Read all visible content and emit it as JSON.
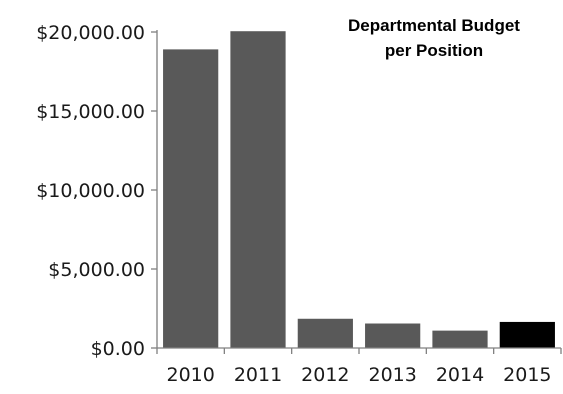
{
  "chart_data": {
    "type": "bar",
    "title_lines": [
      "Departmental Budget",
      "per Position"
    ],
    "categories": [
      "2010",
      "2011",
      "2012",
      "2013",
      "2014",
      "2015"
    ],
    "values": [
      18900,
      20050,
      1850,
      1550,
      1100,
      1650
    ],
    "y_ticks": [
      0,
      5000,
      10000,
      15000,
      20000
    ],
    "y_tick_labels": [
      "$0.00",
      "$5,000.00",
      "$10,000.00",
      "$15,000.00",
      "$20,000.00"
    ],
    "ylim": [
      0,
      20000
    ],
    "xlabel": "",
    "ylabel": "",
    "grid": false,
    "legend": "none",
    "colors": {
      "bar": "#595959",
      "highlight_bar": "#000000",
      "axis": "#808080",
      "text": "#1a1a1a"
    },
    "highlight_category": "2015"
  }
}
